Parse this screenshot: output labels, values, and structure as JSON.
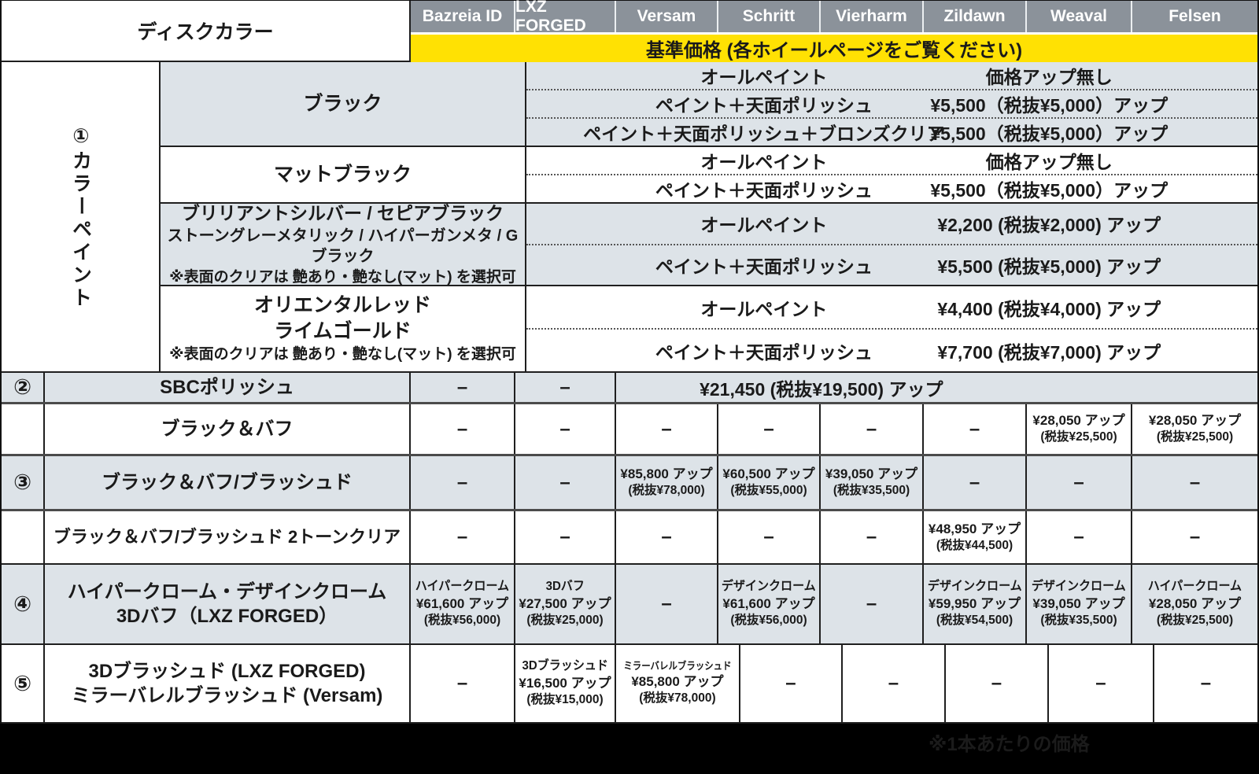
{
  "dash": "–",
  "header": {
    "disc_color": "ディスクカラー",
    "wheels": [
      "Bazreia ID",
      "LXZ FORGED",
      "Versam",
      "Schritt",
      "Vierharm",
      "Zildawn",
      "Weaval",
      "Felsen"
    ],
    "base_price": "基準価格 (各ホイールページをご覧ください)"
  },
  "colors": {
    "header_gray": "#8b929a",
    "banner_yellow": "#ffe103",
    "row_tint": "#dde3e8",
    "border": "#1f1f1f"
  },
  "group1": {
    "number_label": "①カラーペイント",
    "rows": [
      {
        "label_lines": [
          "ブラック"
        ],
        "subs": [
          {
            "desc": "オールペイント",
            "price": "価格アップ無し"
          },
          {
            "desc": "ペイント＋天面ポリッシュ",
            "price": "¥5,500（税抜¥5,000）アップ"
          },
          {
            "desc": "ペイント＋天面ポリッシュ＋ブロンズクリア",
            "price": "¥5,500（税抜¥5,000）アップ"
          }
        ]
      },
      {
        "label_lines": [
          "マットブラック"
        ],
        "subs": [
          {
            "desc": "オールペイント",
            "price": "価格アップ無し"
          },
          {
            "desc": "ペイント＋天面ポリッシュ",
            "price": "¥5,500（税抜¥5,000）アップ"
          }
        ]
      },
      {
        "label_lines": [
          "ブリリアントシルバー / セピアブラック",
          "ストーングレーメタリック / ハイパーガンメタ / Gブラック",
          "※表面のクリアは 艶あり・艶なし(マット) を選択可"
        ],
        "subs": [
          {
            "desc": "オールペイント",
            "price": "¥2,200 (税抜¥2,000) アップ"
          },
          {
            "desc": "ペイント＋天面ポリッシュ",
            "price": "¥5,500 (税抜¥5,000) アップ"
          }
        ]
      },
      {
        "label_lines": [
          "オリエンタルレッド",
          "ライムゴールド",
          "※表面のクリアは 艶あり・艶なし(マット) を選択可"
        ],
        "subs": [
          {
            "desc": "オールペイント",
            "price": "¥4,400 (税抜¥4,000) アップ"
          },
          {
            "desc": "ペイント＋天面ポリッシュ",
            "price": "¥7,700 (税抜¥7,000) アップ"
          }
        ]
      }
    ]
  },
  "group2": {
    "number": "②",
    "label": "SBCポリッシュ",
    "price": "¥21,450 (税抜¥19,500) アップ"
  },
  "group3": {
    "number": "③",
    "rows": [
      {
        "label": "ブラック＆バフ",
        "weaval": [
          "¥28,050 アップ",
          "(税抜¥25,500)"
        ],
        "felsen": [
          "¥28,050 アップ",
          "(税抜¥25,500)"
        ]
      },
      {
        "label": "ブラック＆バフ/ブラッシュド",
        "versam": [
          "¥85,800 アップ",
          "(税抜¥78,000)"
        ],
        "schritt": [
          "¥60,500 アップ",
          "(税抜¥55,000)"
        ],
        "vierharm": [
          "¥39,050 アップ",
          "(税抜¥35,500)"
        ]
      },
      {
        "label": "ブラック＆バフ/ブラッシュド 2トーンクリア",
        "zildawn": [
          "¥48,950 アップ",
          "(税抜¥44,500)"
        ]
      }
    ]
  },
  "group4": {
    "number": "④",
    "label_lines": [
      "ハイパークローム・デザインクローム",
      "3Dバフ（LXZ FORGED）"
    ],
    "bazreia": [
      "ハイパークローム",
      "¥61,600 アップ",
      "(税抜¥56,000)"
    ],
    "lxz": [
      "3Dバフ",
      "¥27,500 アップ",
      "(税抜¥25,000)"
    ],
    "schritt": [
      "デザインクローム",
      "¥61,600 アップ",
      "(税抜¥56,000)"
    ],
    "zildawn": [
      "デザインクローム",
      "¥59,950 アップ",
      "(税抜¥54,500)"
    ],
    "weaval": [
      "デザインクローム",
      "¥39,050 アップ",
      "(税抜¥35,500)"
    ],
    "felsen": [
      "ハイパークローム",
      "¥28,050 アップ",
      "(税抜¥25,500)"
    ]
  },
  "group5": {
    "number": "⑤",
    "label_lines": [
      "3Dブラッシュド (LXZ FORGED)",
      "ミラーバレルブラッシュド (Versam)"
    ],
    "lxz": [
      "3Dブラッシュド",
      "¥16,500 アップ",
      "(税抜¥15,000)"
    ],
    "versam": [
      "ミラーバレルブラッシュド",
      "¥85,800 アップ",
      "(税抜¥78,000)"
    ]
  },
  "footer_note": "※1本あたりの価格"
}
